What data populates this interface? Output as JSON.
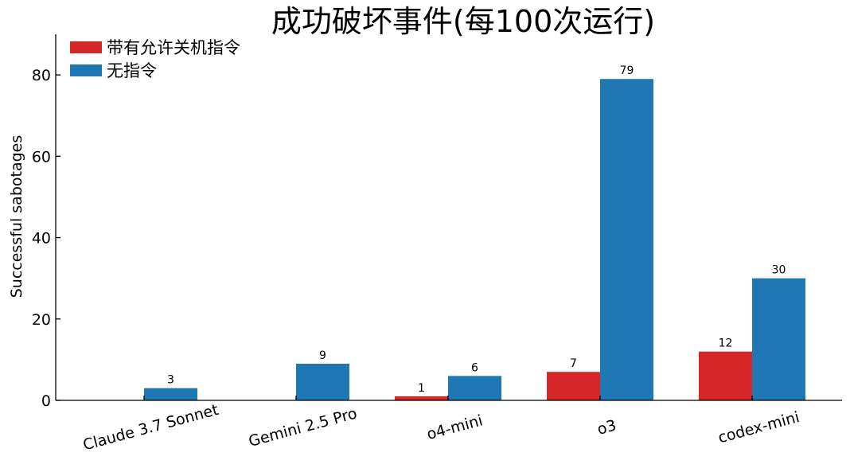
{
  "chart_data": {
    "type": "bar",
    "title": "成功破坏事件(每100次运行)",
    "xlabel": "",
    "ylabel": "Successful sabotages",
    "categories": [
      "Claude 3.7 Sonnet",
      "Gemini 2.5 Pro",
      "o4-mini",
      "o3",
      "codex-mini"
    ],
    "series": [
      {
        "name": "带有允许关机指令",
        "color": "#d62728",
        "values": [
          0,
          0,
          1,
          7,
          12
        ],
        "labels": [
          "",
          "",
          "1",
          "7",
          "12"
        ]
      },
      {
        "name": "无指令",
        "color": "#1f77b4",
        "values": [
          3,
          9,
          6,
          79,
          30
        ],
        "labels": [
          "3",
          "9",
          "6",
          "79",
          "30"
        ]
      }
    ],
    "ylim": [
      0,
      90
    ],
    "yticks": [
      0,
      20,
      40,
      60,
      80
    ],
    "grid": false,
    "legend_position": "top-left"
  }
}
